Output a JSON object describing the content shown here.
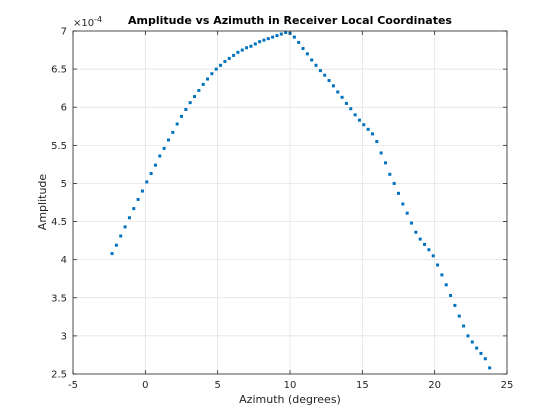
{
  "chart_data": {
    "type": "scatter",
    "title": "Amplitude vs Azimuth in Receiver Local Coordinates",
    "xlabel": "Azimuth (degrees)",
    "ylabel": "Amplitude",
    "xlim": [
      -5,
      25
    ],
    "ylim": [
      0.00025,
      0.0007
    ],
    "xticks": [
      -5,
      0,
      5,
      10,
      15,
      20,
      25
    ],
    "xtick_labels": [
      "-5",
      "0",
      "5",
      "10",
      "15",
      "20",
      "25"
    ],
    "yticks": [
      0.00025,
      0.0003,
      0.00035,
      0.0004,
      0.00045,
      0.0005,
      0.00055,
      0.0006,
      0.00065,
      0.0007
    ],
    "ytick_labels": [
      "2.5",
      "3",
      "3.5",
      "4",
      "4.5",
      "5",
      "5.5",
      "6",
      "6.5",
      "7"
    ],
    "y_exponent_label": "×10",
    "y_exponent_power": "-4",
    "grid": true,
    "marker_color": "#0072BD",
    "series": [
      {
        "x": [
          -2.3,
          -2.0,
          -1.7,
          -1.4,
          -1.1,
          -0.8,
          -0.5,
          -0.2,
          0.1,
          0.4,
          0.7,
          1.0,
          1.3,
          1.6,
          1.9,
          2.2,
          2.5,
          2.8,
          3.1,
          3.4,
          3.7,
          4.0,
          4.3,
          4.6,
          4.9,
          5.2,
          5.5,
          5.8,
          6.1,
          6.4,
          6.7,
          7.0,
          7.3,
          7.6,
          7.9,
          8.2,
          8.5,
          8.8,
          9.1,
          9.4,
          9.7,
          10.0,
          10.3,
          10.6,
          10.9,
          11.2,
          11.5,
          11.8,
          12.1,
          12.4,
          12.7,
          13.0,
          13.3,
          13.6,
          13.9,
          14.2,
          14.5,
          14.8,
          15.1,
          15.4,
          15.7,
          16.0,
          16.3,
          16.6,
          16.9,
          17.2,
          17.5,
          17.8,
          18.1,
          18.4,
          18.7,
          19.0,
          19.3,
          19.6,
          19.9,
          20.2,
          20.5,
          20.8,
          21.1,
          21.4,
          21.7,
          22.0,
          22.3,
          22.6,
          22.9,
          23.2,
          23.5,
          23.8
        ],
        "y": [
          0.000408,
          0.000419,
          0.000431,
          0.000443,
          0.000455,
          0.000467,
          0.000479,
          0.00049,
          0.000502,
          0.000513,
          0.000524,
          0.000536,
          0.000546,
          0.000557,
          0.000567,
          0.000578,
          0.000588,
          0.000597,
          0.000606,
          0.000614,
          0.000622,
          0.00063,
          0.000637,
          0.000644,
          0.00065,
          0.000655,
          0.00066,
          0.000664,
          0.000668,
          0.000672,
          0.000675,
          0.000678,
          0.00068,
          0.000683,
          0.000686,
          0.000688,
          0.00069,
          0.000692,
          0.000694,
          0.000696,
          0.000698,
          0.000697,
          0.000692,
          0.000685,
          0.000677,
          0.00067,
          0.000662,
          0.000655,
          0.000648,
          0.000642,
          0.000635,
          0.000628,
          0.00062,
          0.000613,
          0.000605,
          0.000598,
          0.00059,
          0.000583,
          0.000577,
          0.000571,
          0.000565,
          0.000555,
          0.00054,
          0.000527,
          0.000512,
          0.0005,
          0.000487,
          0.000473,
          0.000461,
          0.000448,
          0.000436,
          0.000427,
          0.00042,
          0.000413,
          0.000405,
          0.000393,
          0.00038,
          0.000367,
          0.000353,
          0.00034,
          0.000326,
          0.000313,
          0.0003,
          0.000292,
          0.000284,
          0.000277,
          0.00027,
          0.000258
        ]
      }
    ]
  }
}
